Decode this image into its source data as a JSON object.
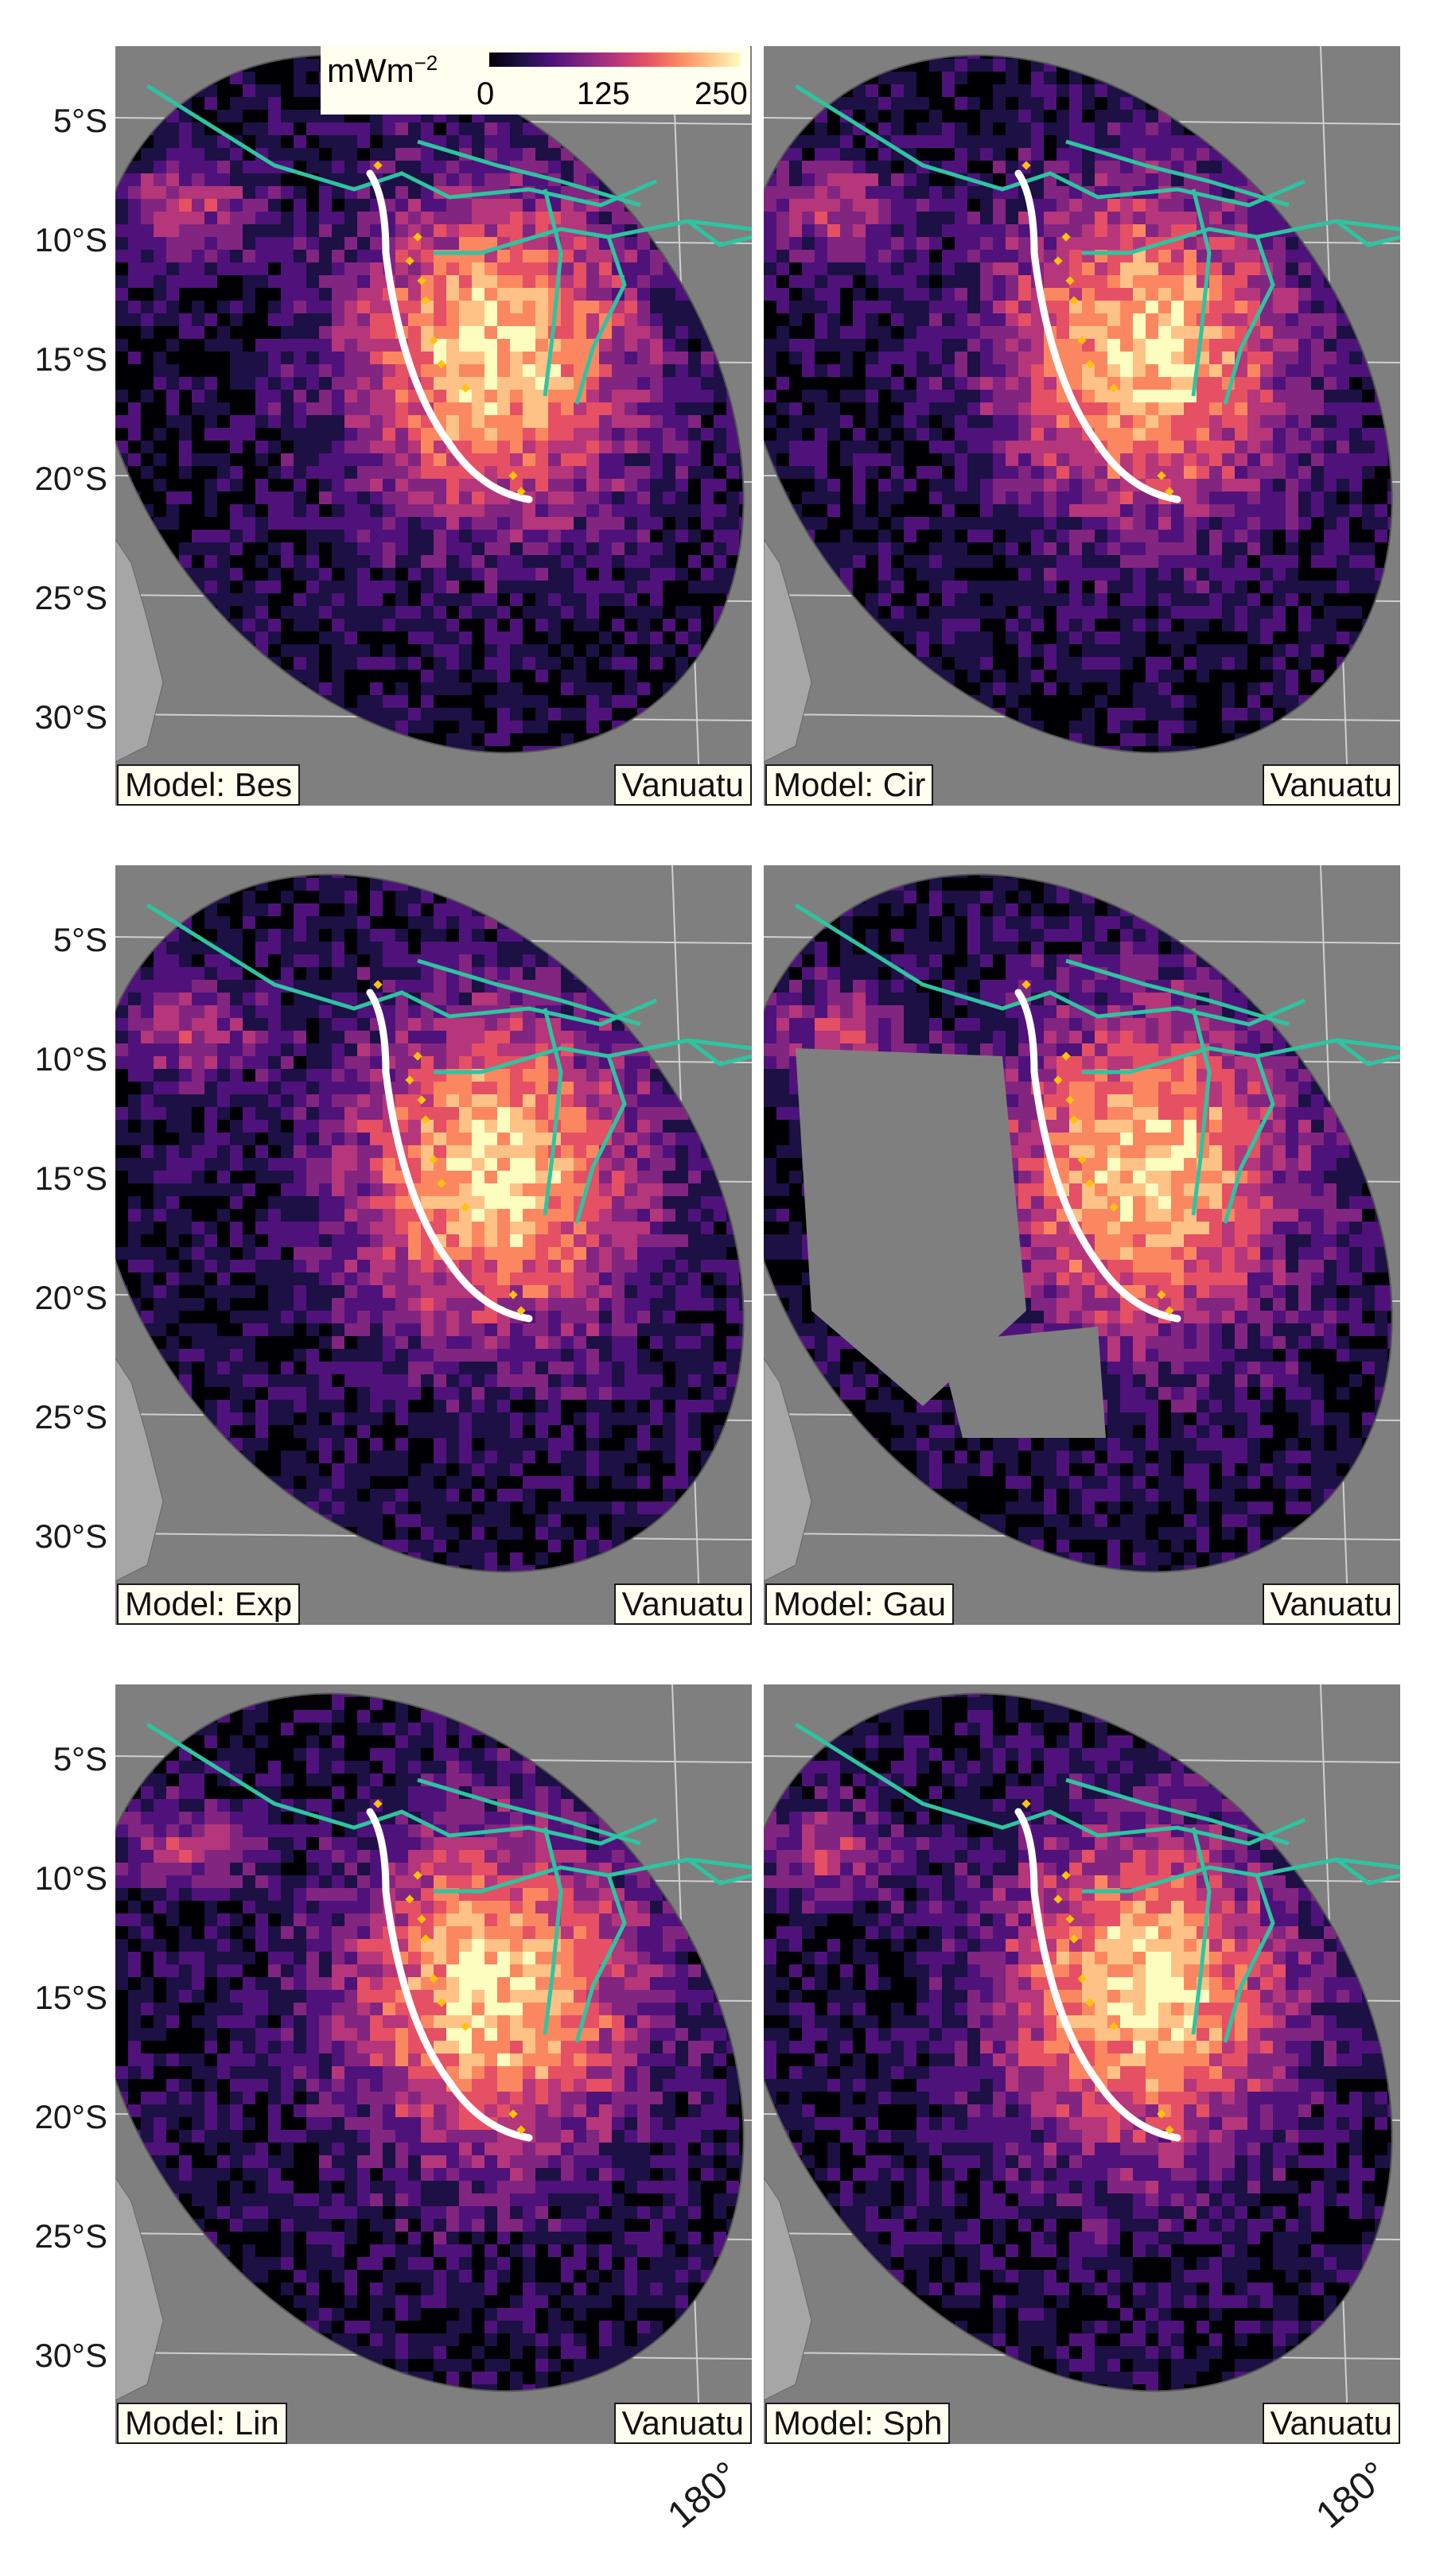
{
  "colorbar": {
    "unit_base": "mWm",
    "unit_exp": "−2",
    "ticks": [
      "0",
      "125",
      "250"
    ],
    "palette": [
      "#000004",
      "#1c1044",
      "#4f127b",
      "#812581",
      "#b5367a",
      "#e55064",
      "#fb8761",
      "#fec287",
      "#fcfdbf"
    ]
  },
  "lat_labels": [
    "5°S",
    "10°S",
    "15°S",
    "20°S",
    "25°S",
    "30°S"
  ],
  "lon_label": "180°",
  "panels": [
    {
      "model": "Model: Bes",
      "region": "Vanuatu"
    },
    {
      "model": "Model: Cir",
      "region": "Vanuatu"
    },
    {
      "model": "Model: Exp",
      "region": "Vanuatu"
    },
    {
      "model": "Model: Gau",
      "region": "Vanuatu"
    },
    {
      "model": "Model: Lin",
      "region": "Vanuatu"
    },
    {
      "model": "Model: Sph",
      "region": "Vanuatu"
    }
  ],
  "colors": {
    "background": "#7f7f7f",
    "plate_boundary": "#2ec4a0",
    "trench": "#ffffff",
    "volcano": "#ffc20e",
    "land": "#a6a6a6"
  }
}
